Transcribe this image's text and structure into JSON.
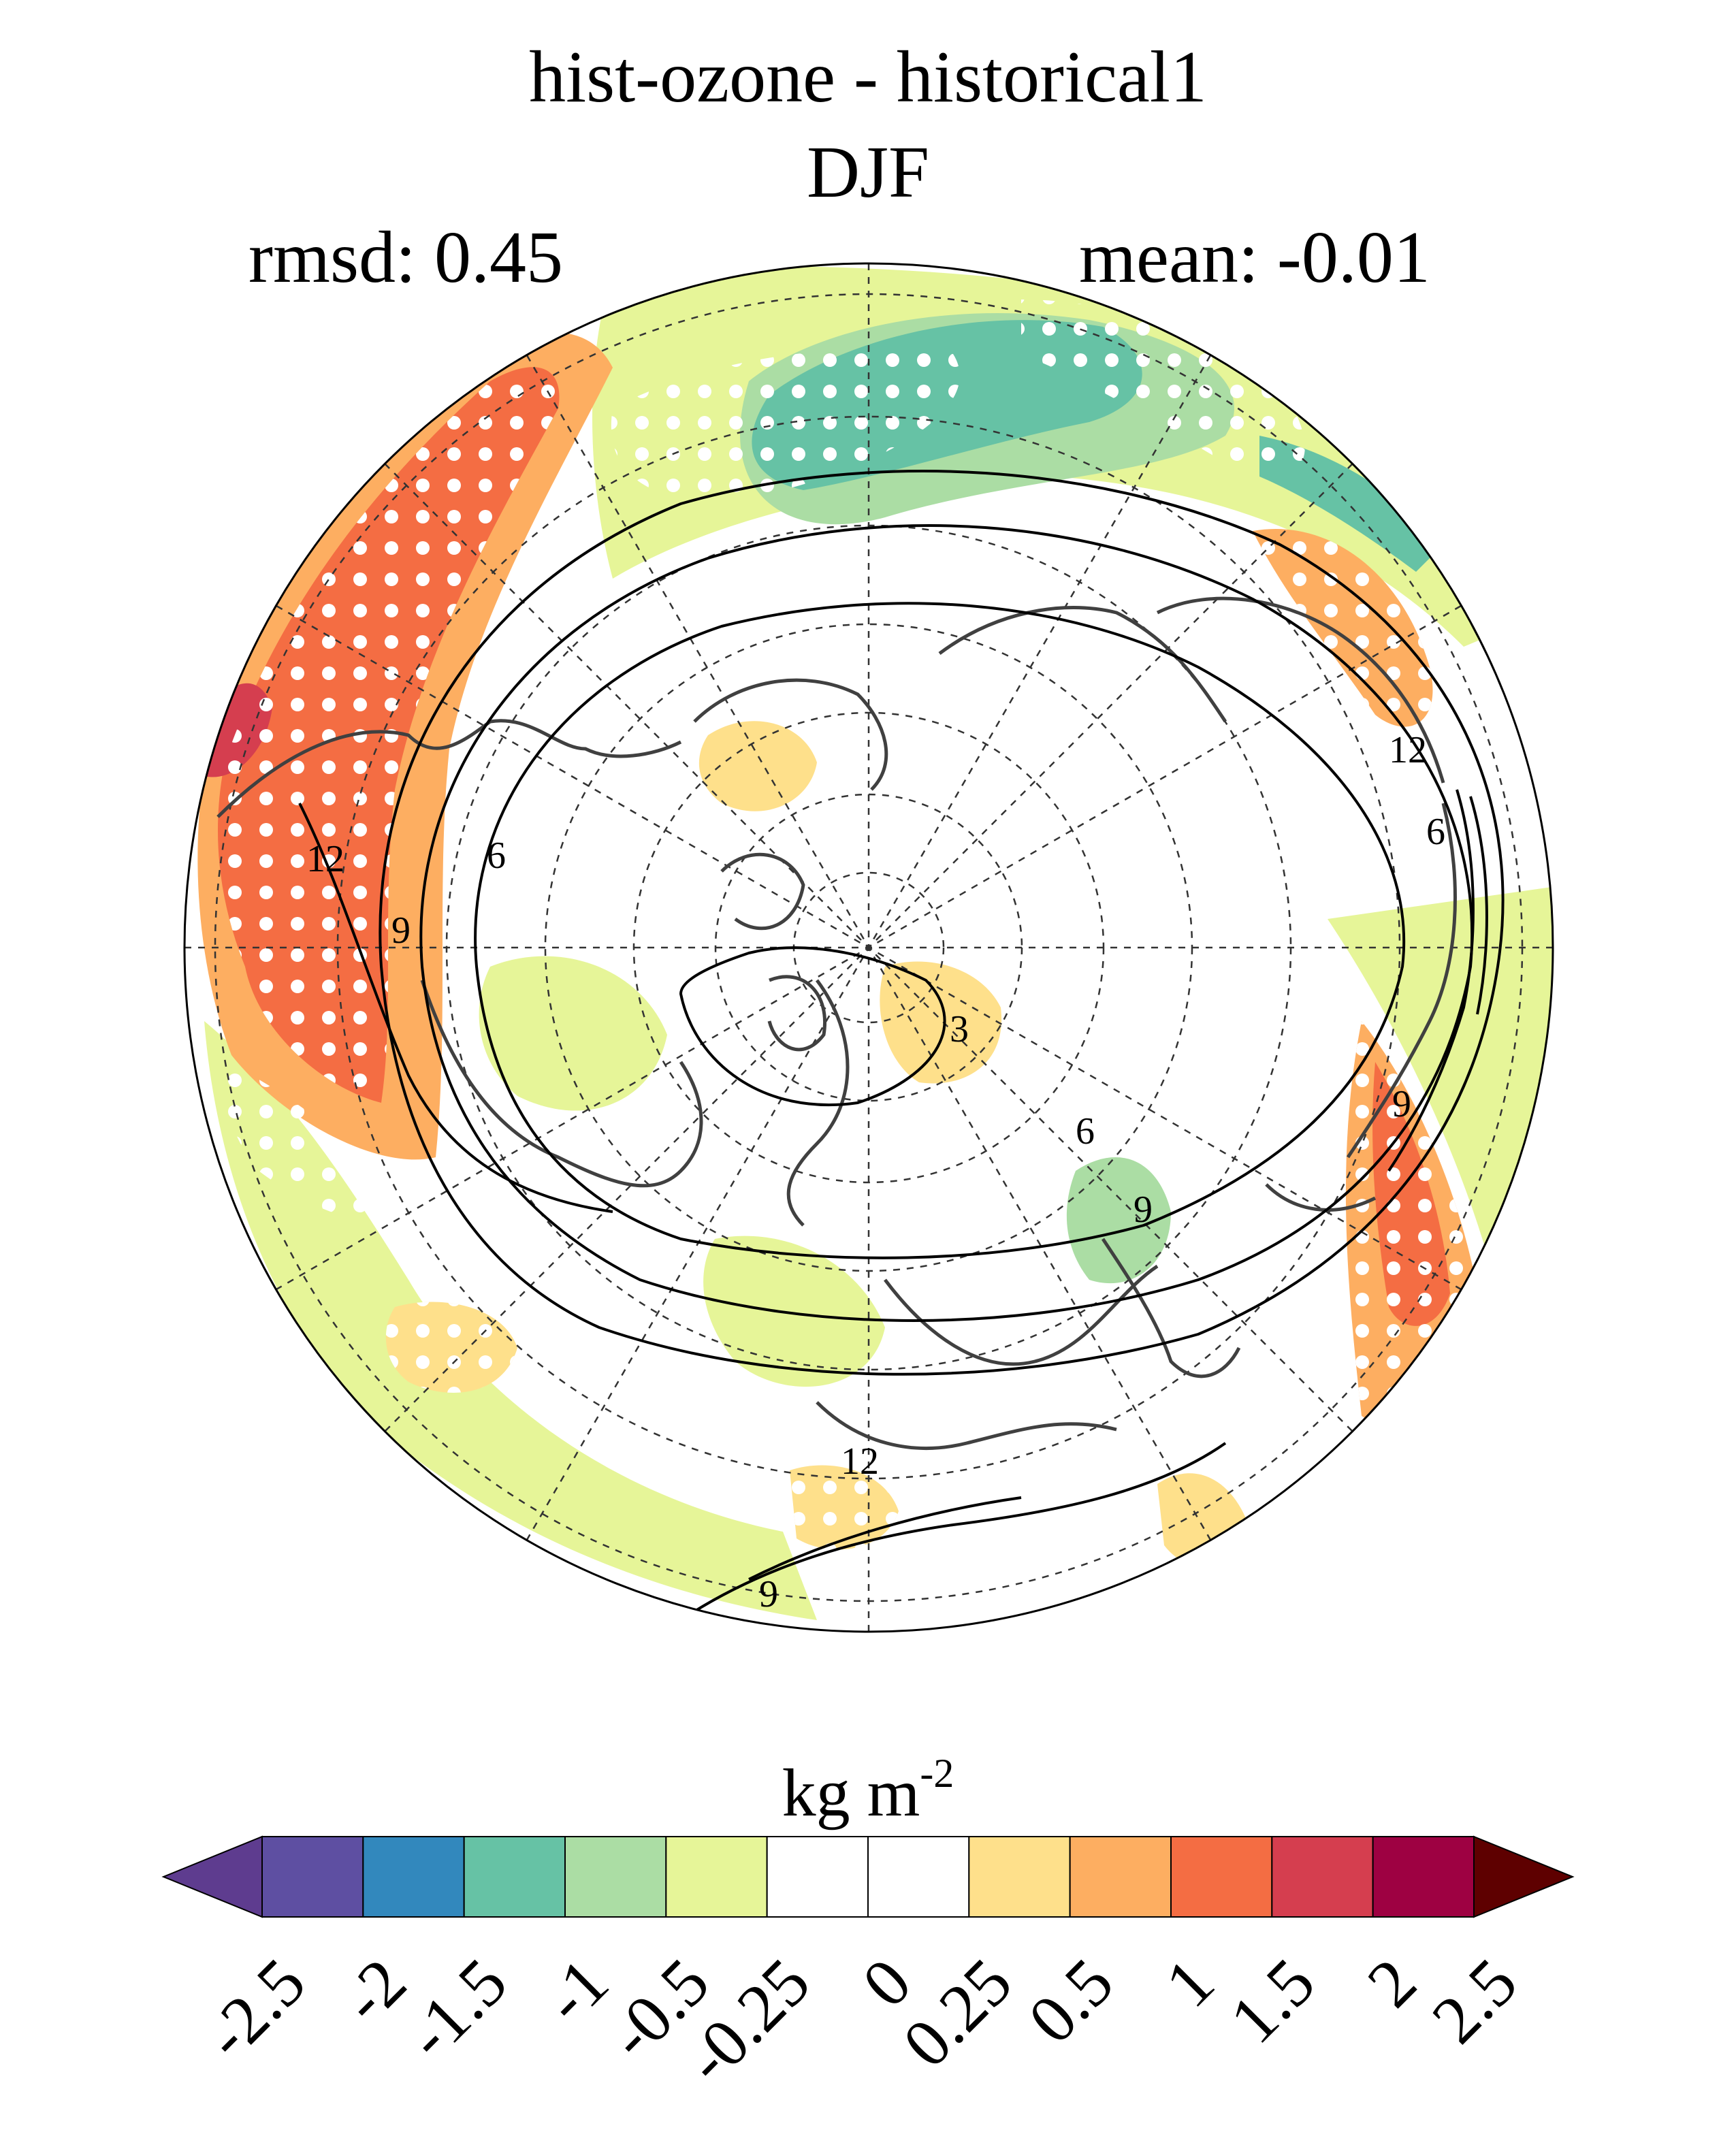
{
  "title": {
    "line1": "hist-ozone - historical1",
    "line2": "DJF"
  },
  "stats": {
    "rmsd": "rmsd: 0.45",
    "mean": "mean: -0.01"
  },
  "map": {
    "projection": "north-polar-stereographic",
    "contour_labels": [
      "3",
      "6",
      "6",
      "6",
      "9",
      "9",
      "9",
      "9",
      "12",
      "12",
      "12"
    ],
    "stippling": "significance dots"
  },
  "colorbar": {
    "units": "kg m",
    "units_exponent": "-2",
    "levels": [
      "-2.5",
      "-2",
      "-1.5",
      "-1",
      "-0.5",
      "-0.25",
      "0",
      "0.25",
      "0.5",
      "1",
      "1.5",
      "2",
      "2.5"
    ],
    "colors": [
      "#5e3c8f",
      "#5e4fa2",
      "#3288bd",
      "#66c2a5",
      "#abdda4",
      "#e6f598",
      "#ffffff",
      "#ffffff",
      "#fee08b",
      "#fdae61",
      "#f46d43",
      "#d53e4f",
      "#9e0142",
      "#5e0000"
    ]
  }
}
